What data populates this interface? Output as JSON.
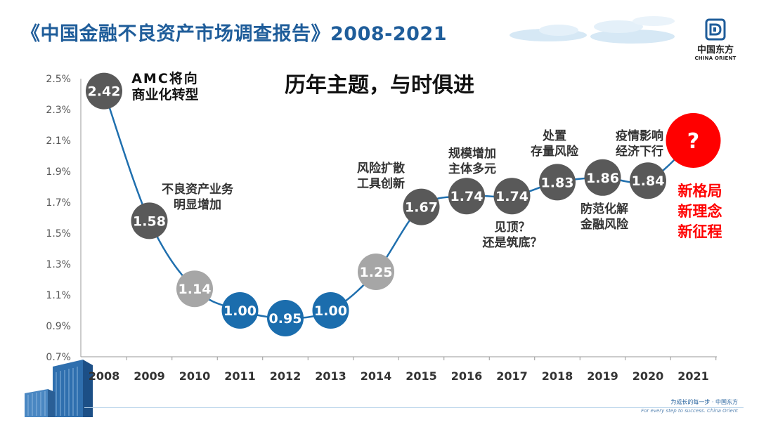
{
  "slide": {
    "title": "《中国金融不良资产市场调查报告》2008-2021",
    "subtitle": "历年主题，与时俱进"
  },
  "logo": {
    "icon": "china-orient-logo-icon",
    "name_cn": "中国东方",
    "name_en": "CHINA ORIENT"
  },
  "footer": {
    "slogan_cn": "为成长的每一步 · 中国东方",
    "slogan_en": "For every step to success. China Orient"
  },
  "chart_data": {
    "type": "line",
    "title": "历年主题，与时俱进",
    "x": [
      "2008",
      "2009",
      "2010",
      "2011",
      "2012",
      "2013",
      "2014",
      "2015",
      "2016",
      "2017",
      "2018",
      "2019",
      "2020",
      "2021"
    ],
    "values": [
      2.42,
      1.58,
      1.14,
      1.0,
      0.95,
      1.0,
      1.25,
      1.67,
      1.74,
      1.74,
      1.83,
      1.86,
      1.84,
      null
    ],
    "value_labels": [
      "2.42",
      "1.58",
      "1.14",
      "1.00",
      "0.95",
      "1.00",
      "1.25",
      "1.67",
      "1.74",
      "1.74",
      "1.83",
      "1.86",
      "1.84",
      "?"
    ],
    "y_ticks": [
      "0.7%",
      "0.9%",
      "1.1%",
      "1.3%",
      "1.5%",
      "1.7%",
      "1.9%",
      "2.1%",
      "2.3%",
      "2.5%"
    ],
    "ylim": [
      0.7,
      2.5
    ],
    "unknown_2021_position": 2.1,
    "grid": false,
    "marker_colors": {
      "dark": "#595959",
      "light": "#a6a6a6",
      "blue": "#1b6dad",
      "red": "#ff0000",
      "line": "#1f6fae",
      "axis_text": "#555555"
    },
    "marker_styles": [
      "dark",
      "dark",
      "light",
      "blue",
      "blue",
      "blue",
      "light",
      "dark",
      "dark",
      "dark",
      "dark",
      "dark",
      "dark",
      "red"
    ],
    "annotations": [
      {
        "year": "2008",
        "lines": [
          "AMC将向",
          "商业化转型"
        ],
        "color": "#111111"
      },
      {
        "year": "2009",
        "lines": [
          "不良资产业务",
          "明显增加"
        ],
        "color": "#333333"
      },
      {
        "year": "2014",
        "lines": [
          "风险扩散",
          "工具创新"
        ],
        "color": "#333333"
      },
      {
        "year": "2016",
        "lines": [
          "规模增加",
          "主体多元"
        ],
        "color": "#333333"
      },
      {
        "year": "2017",
        "lines": [
          "见顶？",
          "还是筑底？"
        ],
        "color": "#333333"
      },
      {
        "year": "2018",
        "lines": [
          "处置",
          "存量风险"
        ],
        "color": "#333333"
      },
      {
        "year": "2019",
        "lines": [
          "防范化解",
          "金融风险"
        ],
        "color": "#333333"
      },
      {
        "year": "2020",
        "lines": [
          "疫情影响",
          "经济下行"
        ],
        "color": "#333333"
      },
      {
        "year": "2021",
        "lines": [
          "新格局",
          "新理念",
          "新征程"
        ],
        "color": "#ff0000"
      }
    ]
  }
}
